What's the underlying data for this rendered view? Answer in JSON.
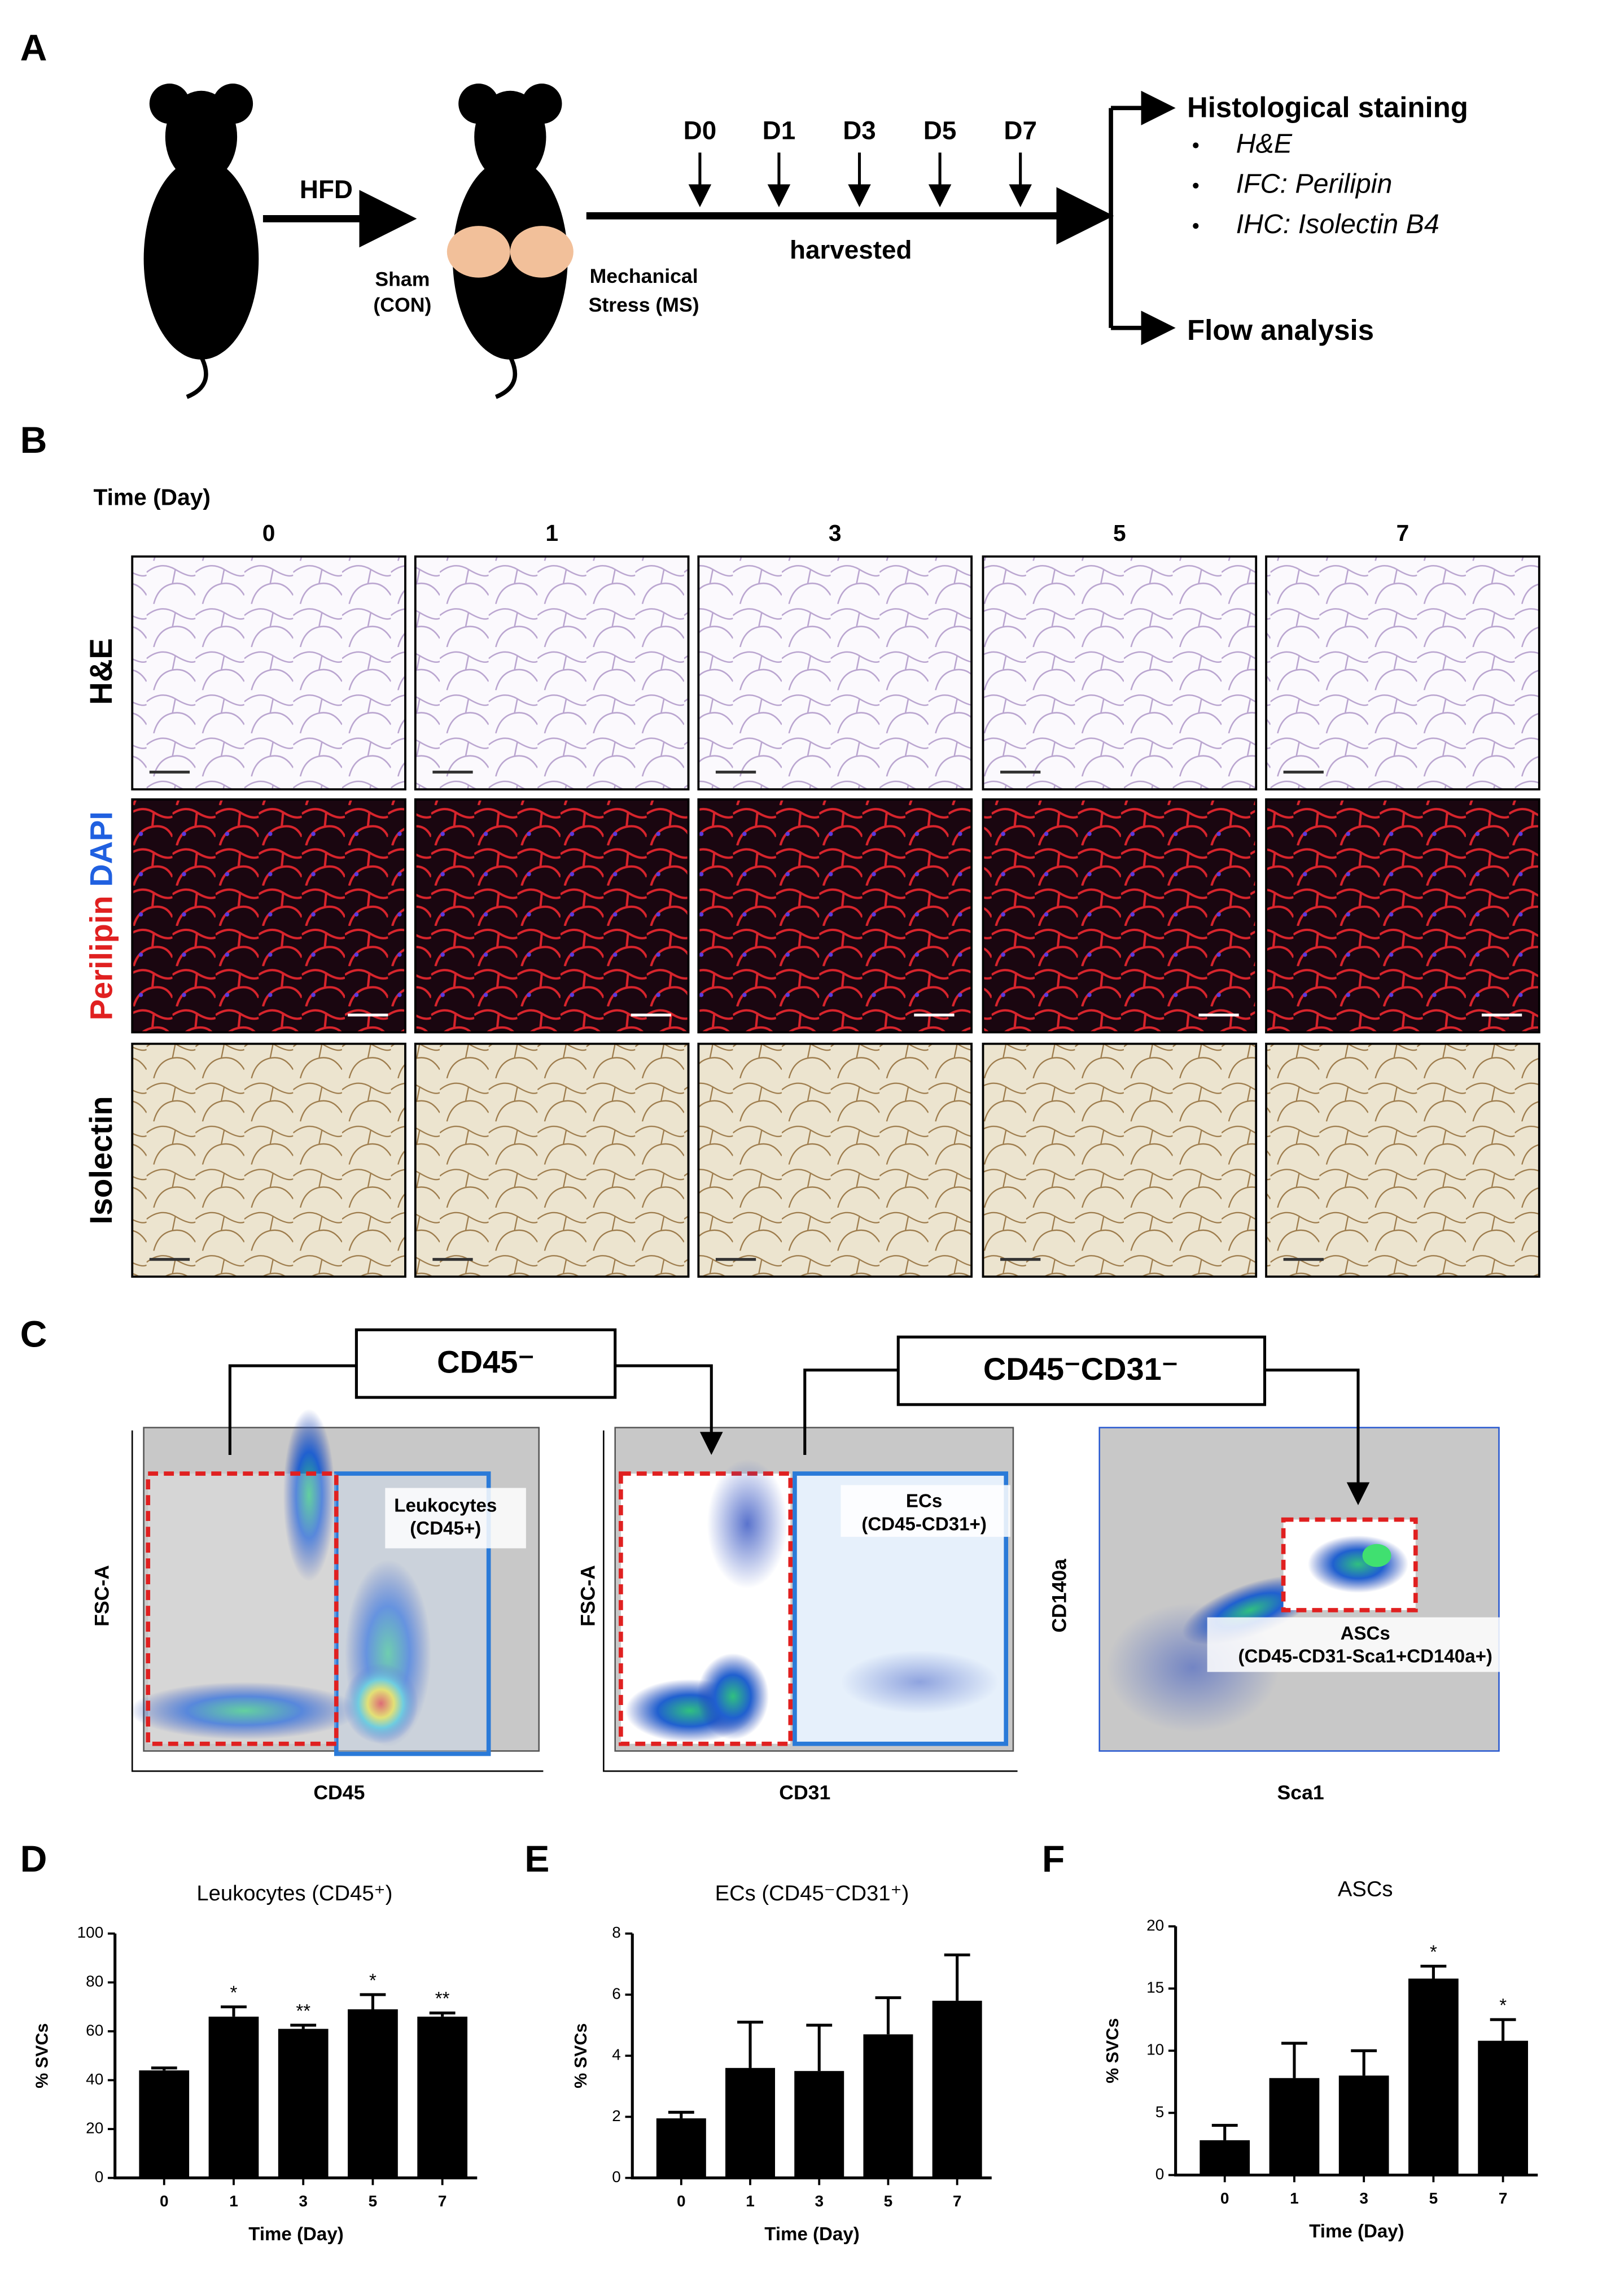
{
  "panel_a": {
    "letter": "A",
    "step": "HFD",
    "sham": [
      "Sham",
      "(CON)"
    ],
    "ms": [
      "Mechanical",
      "Stress (MS)"
    ],
    "days": [
      "D0",
      "D1",
      "D3",
      "D5",
      "D7"
    ],
    "harvested": "harvested",
    "outputs": {
      "histology": "Histological  staining",
      "items": [
        "H&E",
        "IFC: Perilipin",
        "IHC: Isolectin B4"
      ],
      "flow": "Flow analysis"
    }
  },
  "panel_b": {
    "letter": "B",
    "time_label": "Time (Day)",
    "columns": [
      "0",
      "1",
      "3",
      "5",
      "7"
    ],
    "rows": [
      "H&E",
      [
        "Perilipin",
        "DAPI"
      ],
      "Isolectin"
    ]
  },
  "panel_c": {
    "letter": "C",
    "gate1": "CD45⁻",
    "gate2": "CD45⁻CD31⁻",
    "plots": [
      {
        "gate_label": [
          "Leukocytes",
          "(CD45+)"
        ],
        "ylabel": "FSC-A",
        "xlabel": "CD45"
      },
      {
        "gate_label": [
          "ECs",
          "(CD45-CD31+)"
        ],
        "ylabel": "FSC-A",
        "xlabel": "CD31"
      },
      {
        "gate_label": [
          "ASCs",
          "(CD45-CD31-Sca1+CD140a+)"
        ],
        "ylabel": "CD140a",
        "xlabel": "Sca1"
      }
    ]
  },
  "chart_data": [
    {
      "type": "bar",
      "letter": "D",
      "title": "Leukocytes (CD45⁺)",
      "ylabel": "% SVCs",
      "xlabel": "Time (Day)",
      "categories": [
        "0",
        "1",
        "3",
        "5",
        "7"
      ],
      "values": [
        44,
        66,
        61,
        69,
        66
      ],
      "errors": [
        1,
        4,
        1.5,
        6,
        1.5
      ],
      "annotations": [
        null,
        "*",
        "**",
        "*",
        "**"
      ],
      "color": "#000000",
      "ylim": [
        0,
        100
      ],
      "yticks": [
        0,
        20,
        40,
        60,
        80,
        100
      ]
    },
    {
      "type": "bar",
      "letter": "E",
      "title": "ECs (CD45⁻CD31⁺)",
      "ylabel": "% SVCs",
      "xlabel": "Time (Day)",
      "categories": [
        "0",
        "1",
        "3",
        "5",
        "7"
      ],
      "values": [
        1.95,
        3.6,
        3.5,
        4.7,
        5.8
      ],
      "errors": [
        0.2,
        1.5,
        1.5,
        1.2,
        1.5
      ],
      "color": "#000000",
      "ylim": [
        0,
        8
      ],
      "yticks": [
        0,
        2,
        4,
        6,
        8
      ]
    },
    {
      "type": "bar",
      "letter": "F",
      "title": "ASCs",
      "ylabel": "% SVCs",
      "xlabel": "Time (Day)",
      "categories": [
        "0",
        "1",
        "3",
        "5",
        "7"
      ],
      "values": [
        2.8,
        7.8,
        8.0,
        15.8,
        10.8
      ],
      "errors": [
        1.2,
        2.8,
        2,
        1,
        1.7
      ],
      "annotations": [
        null,
        null,
        null,
        "*",
        "*"
      ],
      "color": "#000000",
      "ylim": [
        0,
        20
      ],
      "yticks": [
        0,
        5,
        10,
        15,
        20
      ]
    }
  ]
}
